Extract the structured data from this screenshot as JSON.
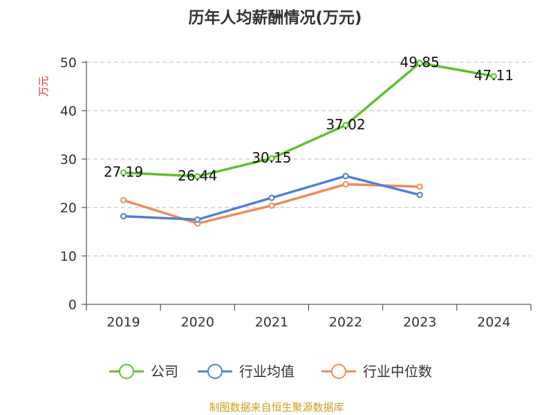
{
  "chart_data": {
    "type": "line",
    "title": "历年人均薪酬情况(万元)",
    "ylabel": "万元",
    "ylim": [
      0,
      50
    ],
    "yticks": [
      0,
      10,
      20,
      30,
      40,
      50
    ],
    "categories": [
      "2019",
      "2020",
      "2021",
      "2022",
      "2023",
      "2024"
    ],
    "grid": "horizontal-dashed",
    "legend_position": "bottom",
    "series": [
      {
        "name": "公司",
        "color": "#5cc12a",
        "values": [
          27.19,
          26.44,
          30.15,
          37.02,
          49.85,
          47.11
        ],
        "labels": [
          "27.19",
          "26.44",
          "30.15",
          "37.02",
          "49.85",
          "47.11"
        ]
      },
      {
        "name": "行业均值",
        "color": "#4f7fd8",
        "values": [
          18.2,
          17.5,
          22.0,
          26.5,
          22.6,
          null
        ]
      },
      {
        "name": "行业中位数",
        "color": "#f08a55",
        "values": [
          21.5,
          16.7,
          20.4,
          24.8,
          24.3,
          null
        ]
      }
    ]
  },
  "source_text": "制图数据来自恒生聚源数据库",
  "colors": {
    "title": "#333333",
    "ylabel": "#e03030",
    "source": "#c8a020",
    "axis": "#333333",
    "grid": "#bbbbbb"
  }
}
